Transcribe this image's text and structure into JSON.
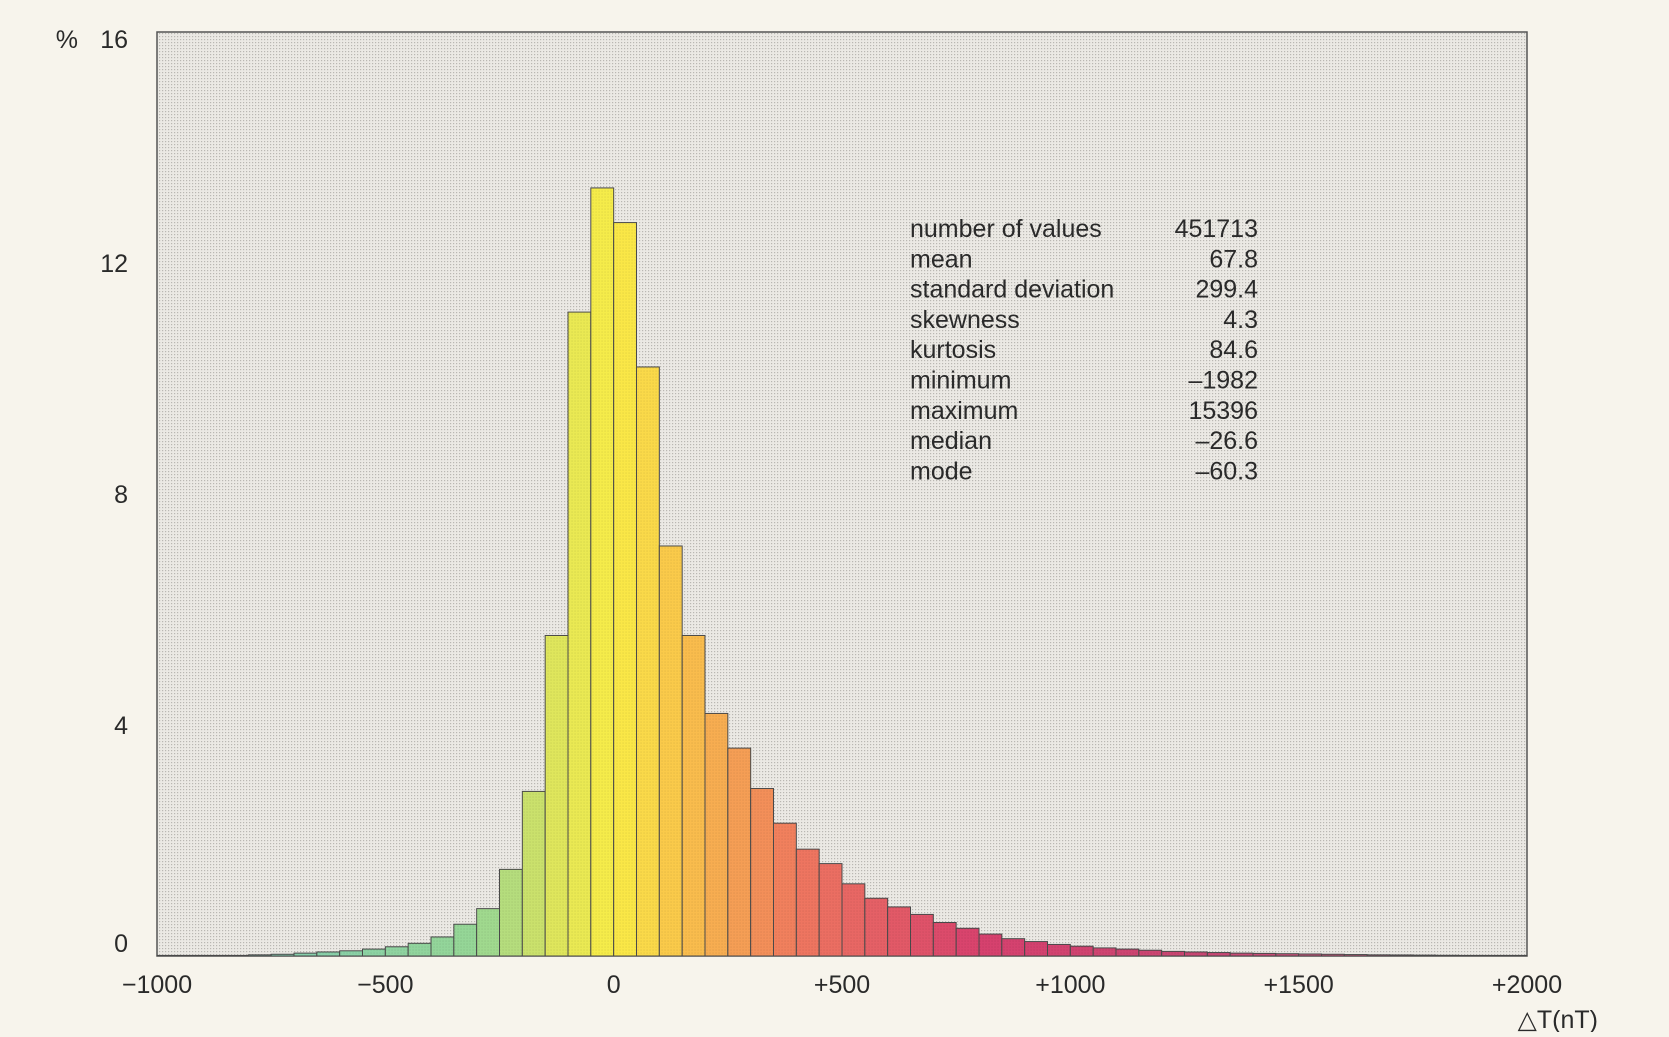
{
  "chart_data": {
    "type": "bar",
    "ylabel": "%",
    "xlabel": "△T(nT)",
    "xlim": [
      -1000,
      2000
    ],
    "ylim": [
      0,
      16
    ],
    "bin_width": 50,
    "x_ticks": [
      {
        "value": -1000,
        "label": "−1000"
      },
      {
        "value": -500,
        "label": "−500"
      },
      {
        "value": 0,
        "label": "0"
      },
      {
        "value": 500,
        "label": "+500"
      },
      {
        "value": 1000,
        "label": "+1000"
      },
      {
        "value": 1500,
        "label": "+1500"
      },
      {
        "value": 2000,
        "label": "+2000"
      }
    ],
    "y_ticks": [
      {
        "value": 0,
        "label": "0"
      },
      {
        "value": 4,
        "label": "4"
      },
      {
        "value": 8,
        "label": "8"
      },
      {
        "value": 12,
        "label": "12"
      },
      {
        "value": 16,
        "label": "16"
      }
    ],
    "bins": [
      -1000,
      -950,
      -900,
      -850,
      -800,
      -750,
      -700,
      -650,
      -600,
      -550,
      -500,
      -450,
      -400,
      -350,
      -300,
      -250,
      -200,
      -150,
      -100,
      -50,
      0,
      50,
      100,
      150,
      200,
      250,
      300,
      350,
      400,
      450,
      500,
      550,
      600,
      650,
      700,
      750,
      800,
      850,
      900,
      950,
      1000,
      1050,
      1100,
      1150,
      1200,
      1250,
      1300,
      1350,
      1400,
      1450,
      1500,
      1550,
      1600,
      1650,
      1700,
      1750,
      1800,
      1850,
      1900,
      1950
    ],
    "values": [
      0.01,
      0.01,
      0.01,
      0.01,
      0.02,
      0.03,
      0.05,
      0.07,
      0.09,
      0.12,
      0.16,
      0.22,
      0.33,
      0.55,
      0.82,
      1.5,
      2.85,
      5.55,
      11.15,
      13.3,
      12.7,
      10.2,
      7.1,
      5.55,
      4.2,
      3.6,
      2.9,
      2.3,
      1.85,
      1.6,
      1.25,
      1.0,
      0.85,
      0.72,
      0.58,
      0.48,
      0.38,
      0.3,
      0.25,
      0.2,
      0.17,
      0.14,
      0.12,
      0.1,
      0.08,
      0.07,
      0.06,
      0.05,
      0.045,
      0.04,
      0.035,
      0.03,
      0.025,
      0.02,
      0.018,
      0.015,
      0.012,
      0.01,
      0.01,
      0.01
    ],
    "grid": false,
    "stats": [
      {
        "label": "number of values",
        "value": "451713"
      },
      {
        "label": "mean",
        "value": "67.8"
      },
      {
        "label": "standard deviation",
        "value": "299.4"
      },
      {
        "label": "skewness",
        "value": "4.3"
      },
      {
        "label": "kurtosis",
        "value": "84.6"
      },
      {
        "label": "minimum",
        "value": "–1982"
      },
      {
        "label": "maximum",
        "value": "15396"
      },
      {
        "label": "median",
        "value": "–26.6"
      },
      {
        "label": "mode",
        "value": "–60.3"
      }
    ]
  }
}
